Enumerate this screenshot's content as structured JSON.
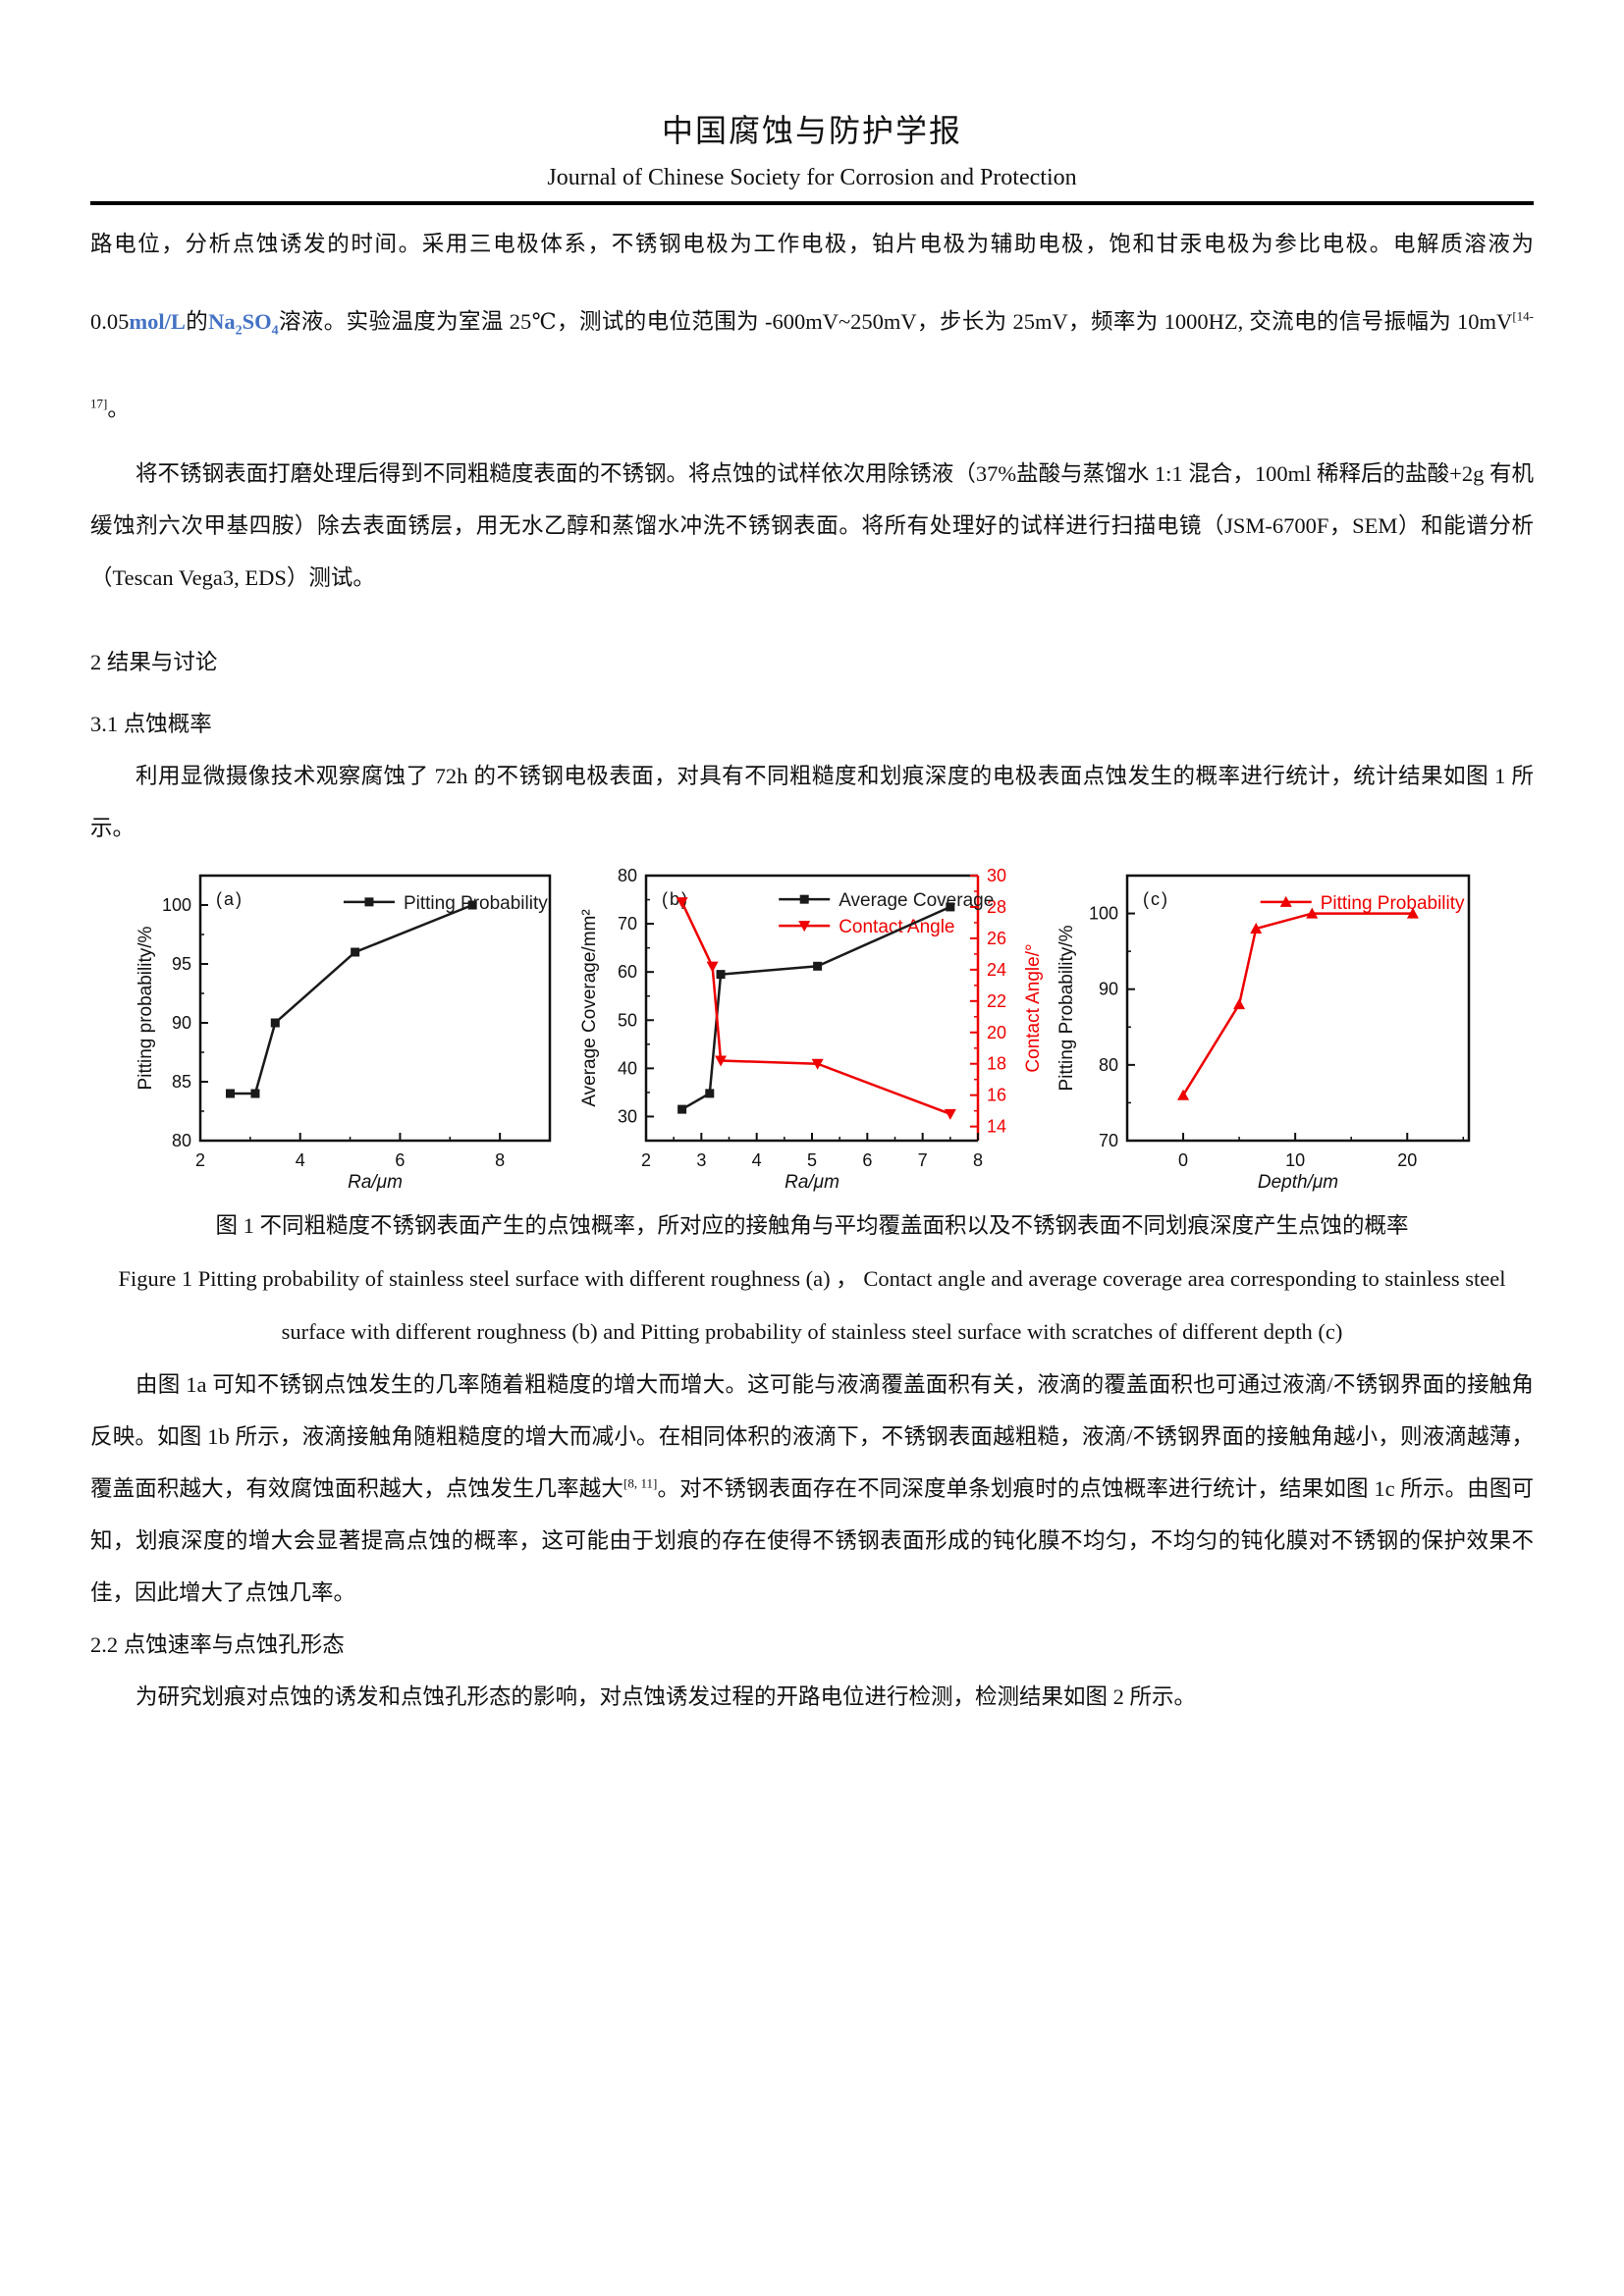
{
  "header": {
    "title_cn": "中国腐蚀与防护学报",
    "title_en": "Journal of Chinese Society for Corrosion and Protection"
  },
  "colors": {
    "chart_red": "#ee0000",
    "chart_black": "#1a1a1a",
    "formula_blue": "#4472c4"
  },
  "paragraphs": {
    "p1_pre": "路电位，分析点蚀诱发的时间。采用三电极体系，不锈钢电极为工作电极，铂片电极为辅助电极，饱和甘汞电极为参比电极。电解质溶液为 0.05",
    "p1_molL": "mol/L",
    "p1_de": "的",
    "p1_na": "Na",
    "p1_sub2": "2",
    "p1_so": "SO",
    "p1_sub4": "4",
    "p1_mid": "溶液。实验温度为室温 25℃，测试的电位范围为 -600mV~250mV，步长为 25mV，频率为 1000HZ, 交流电的信号振幅为 10mV",
    "p1_cite": "[14-17]",
    "p1_end": "。",
    "p2": "将不锈钢表面打磨处理后得到不同粗糙度表面的不锈钢。将点蚀的试样依次用除锈液（37%盐酸与蒸馏水 1:1 混合，100ml 稀释后的盐酸+2g 有机缓蚀剂六次甲基四胺）除去表面锈层，用无水乙醇和蒸馏水冲洗不锈钢表面。将所有处理好的试样进行扫描电镜（JSM-6700F，SEM）和能谱分析（Tescan Vega3, EDS）测试。",
    "h_results": "2 结果与讨论",
    "h_31": "3.1 点蚀概率",
    "p3": "利用显微摄像技术观察腐蚀了 72h 的不锈钢电极表面，对具有不同粗糙度和划痕深度的电极表面点蚀发生的概率进行统计，统计结果如图 1 所示。",
    "caption_cn": "图 1  不同粗糙度不锈钢表面产生的点蚀概率，所对应的接触角与平均覆盖面积以及不锈钢表面不同划痕深度产生点蚀的概率",
    "caption_en": "Figure 1 Pitting probability of stainless steel surface with different roughness (a) ， Contact angle and average coverage area corresponding to stainless steel surface with different roughness (b) and Pitting probability of stainless steel surface with scratches of different depth (c)",
    "p4_pre": "由图 1a 可知不锈钢点蚀发生的几率随着粗糙度的增大而增大。这可能与液滴覆盖面积有关，液滴的覆盖面积也可通过液滴/不锈钢界面的接触角反映。如图 1b 所示，液滴接触角随粗糙度的增大而减小。在相同体积的液滴下，不锈钢表面越粗糙，液滴/不锈钢界面的接触角越小，则液滴越薄，覆盖面积越大，有效腐蚀面积越大，点蚀发生几率越大",
    "p4_cite": "[8, 11]",
    "p4_post": "。对不锈钢表面存在不同深度单条划痕时的点蚀概率进行统计，结果如图 1c 所示。由图可知，划痕深度的增大会显著提高点蚀的概率，这可能由于划痕的存在使得不锈钢表面形成的钝化膜不均匀，不均匀的钝化膜对不锈钢的保护效果不佳，因此增大了点蚀几率。",
    "h_22": "2.2 点蚀速率与点蚀孔形态",
    "p5": "为研究划痕对点蚀的诱发和点蚀孔形态的影响，对点蚀诱发过程的开路电位进行检测，检测结果如图 2 所示。"
  },
  "chart_data": [
    {
      "type": "line",
      "panel_label": "(a)",
      "xlabel": "Ra/μm",
      "ylabel": "Pitting probability/%",
      "xlim": [
        2,
        9
      ],
      "xticks": [
        2,
        4,
        6,
        8
      ],
      "x_minor_step": 1,
      "ylim": [
        80,
        102.5
      ],
      "yticks": [
        80,
        85,
        90,
        95,
        100
      ],
      "y_minor_step": 2.5,
      "grid": false,
      "legend_position": "top-inside",
      "series": [
        {
          "name": "Pitting Probability",
          "axis": "y1",
          "color": "#1a1a1a",
          "marker": "square",
          "x": [
            2.6,
            3.1,
            3.5,
            5.1,
            7.45
          ],
          "y": [
            84,
            84,
            90,
            96,
            100
          ]
        }
      ]
    },
    {
      "type": "line",
      "panel_label": "(b)",
      "xlabel": "Ra/μm",
      "ylabel": "Average Coverage/mm²",
      "ylabel2": "Contact Angle/°",
      "xlim": [
        2,
        8
      ],
      "xticks": [
        2,
        3,
        4,
        5,
        6,
        7,
        8
      ],
      "x_minor_step": 0.5,
      "ylim": [
        25,
        80
      ],
      "yticks": [
        30,
        40,
        50,
        60,
        70,
        80
      ],
      "y_minor_step": 5,
      "ylim2": [
        13.1,
        30
      ],
      "yticks2": [
        14,
        16,
        18,
        20,
        22,
        24,
        26,
        28,
        30
      ],
      "y2_minor_step": 1,
      "grid": false,
      "legend_position": "top-inside",
      "series": [
        {
          "name": "Average Coverage",
          "axis": "y1",
          "color": "#1a1a1a",
          "marker": "square",
          "x": [
            2.65,
            3.15,
            3.35,
            5.1,
            7.5
          ],
          "y": [
            31.5,
            34.8,
            59.5,
            61.2,
            73.5
          ]
        },
        {
          "name": "Contact Angle",
          "axis": "y2",
          "color": "#ee0000",
          "marker": "triangle-down",
          "x": [
            2.65,
            3.2,
            3.35,
            5.1,
            7.5
          ],
          "y": [
            28.3,
            24.2,
            18.2,
            18.0,
            14.8
          ]
        }
      ]
    },
    {
      "type": "line",
      "panel_label": "(c)",
      "xlabel": "Depth/μm",
      "ylabel": "Pitting Probability/%",
      "xlim": [
        -5,
        25.5
      ],
      "xticks": [
        0,
        10,
        20
      ],
      "x_minor_step": 5,
      "ylim": [
        70,
        105
      ],
      "yticks": [
        70,
        80,
        90,
        100
      ],
      "y_minor_step": 5,
      "grid": false,
      "legend_position": "top-inside",
      "series": [
        {
          "name": "Pitting Probability",
          "axis": "y1",
          "color": "#ee0000",
          "marker": "triangle-up",
          "x": [
            0,
            5,
            6.5,
            11.5,
            20.5
          ],
          "y": [
            76,
            88,
            98,
            100,
            100
          ]
        }
      ]
    }
  ]
}
